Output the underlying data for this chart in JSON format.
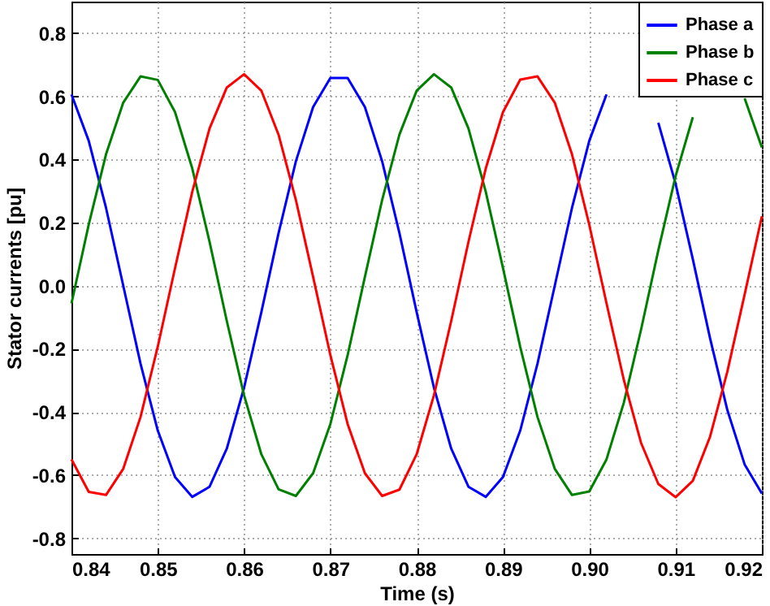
{
  "chart_data": {
    "type": "line",
    "xlabel": "Time (s)",
    "ylabel": "Stator currents [pu]",
    "x": [
      0.84,
      0.842,
      0.844,
      0.846,
      0.848,
      0.85,
      0.852,
      0.854,
      0.856,
      0.858,
      0.86,
      0.862,
      0.864,
      0.866,
      0.868,
      0.87,
      0.872,
      0.874,
      0.876,
      0.878,
      0.88,
      0.882,
      0.884,
      0.886,
      0.888,
      0.89,
      0.892,
      0.894,
      0.896,
      0.898,
      0.9,
      0.902,
      0.904,
      0.906,
      0.908,
      0.91,
      0.912,
      0.914,
      0.916,
      0.918,
      0.92
    ],
    "series": [
      {
        "name": "Phase a",
        "color": "#0000ff",
        "values": [
          0.606,
          0.459,
          0.247,
          0,
          -0.247,
          -0.459,
          -0.606,
          -0.669,
          -0.637,
          -0.516,
          -0.323,
          -0.084,
          0.167,
          0.394,
          0.566,
          0.658,
          0.658,
          0.566,
          0.394,
          0.167,
          -0.084,
          -0.323,
          -0.516,
          -0.637,
          -0.669,
          -0.606,
          -0.459,
          -0.247,
          0,
          0.247,
          0.459,
          0.606,
          null,
          null,
          0.516,
          0.323,
          0.084,
          -0.167,
          -0.394,
          -0.566,
          -0.658
        ]
      },
      {
        "name": "Phase b",
        "color": "#008000",
        "values": [
          -0.056,
          0.194,
          0.416,
          0.58,
          0.663,
          0.652,
          0.55,
          0.371,
          0.139,
          -0.112,
          -0.347,
          -0.534,
          -0.645,
          -0.666,
          -0.594,
          -0.438,
          -0.22,
          0.028,
          0.272,
          0.479,
          0.618,
          0.67,
          0.628,
          0.498,
          0.298,
          0.056,
          -0.194,
          -0.416,
          -0.58,
          -0.663,
          -0.652,
          -0.55,
          -0.371,
          -0.139,
          0.112,
          0.347,
          0.534,
          null,
          null,
          0.594,
          0.438
        ]
      },
      {
        "name": "Phase c",
        "color": "#ff0000",
        "values": [
          -0.55,
          -0.653,
          -0.663,
          -0.58,
          -0.416,
          -0.193,
          0.056,
          0.298,
          0.498,
          0.628,
          0.67,
          0.618,
          0.478,
          0.272,
          0.028,
          -0.22,
          -0.438,
          -0.594,
          -0.666,
          -0.646,
          -0.534,
          -0.347,
          -0.112,
          0.139,
          0.371,
          0.55,
          0.653,
          0.663,
          0.58,
          0.416,
          0.193,
          -0.056,
          -0.298,
          -0.498,
          -0.628,
          -0.67,
          -0.618,
          -0.478,
          -0.272,
          -0.028,
          0.22
        ]
      }
    ],
    "xlim": [
      0.84,
      0.92
    ],
    "xticks": [
      0.84,
      0.85,
      0.86,
      0.87,
      0.88,
      0.89,
      {
        "value": 0.9,
        "label": "0.90"
      },
      0.91,
      0.92
    ],
    "ylim": [
      -0.85,
      0.9
    ],
    "yticks": [
      -0.8,
      -0.6,
      -0.4,
      -0.2,
      {
        "value": 0,
        "label": "0.0"
      },
      0.2,
      0.4,
      0.6,
      0.8
    ],
    "grid": true,
    "legend": "top right",
    "marker": "none",
    "line_style": "solid"
  }
}
